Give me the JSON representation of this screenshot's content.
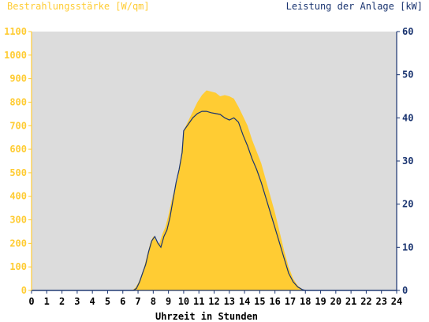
{
  "chart_data": {
    "type": "area",
    "title_left": "Bestrahlungsstärke [W/qm]",
    "title_right": "Leistung der Anlage [kW]",
    "xlabel": "Uhrzeit in Stunden",
    "xlim": [
      0,
      24
    ],
    "ylim_left": [
      0,
      1100
    ],
    "ylim_right": [
      0,
      60
    ],
    "x_ticks": [
      "0",
      "1",
      "2",
      "3",
      "4",
      "5",
      "6",
      "7",
      "8",
      "9",
      "10",
      "11",
      "12",
      "13",
      "14",
      "15",
      "16",
      "17",
      "18",
      "19",
      "20",
      "21",
      "22",
      "23",
      "24"
    ],
    "y_ticks_left": [
      "0",
      "100",
      "200",
      "300",
      "400",
      "500",
      "600",
      "700",
      "800",
      "900",
      "1000",
      "1100"
    ],
    "y_ticks_right": [
      "0",
      "10",
      "20",
      "30",
      "40",
      "50",
      "60"
    ],
    "grid": false,
    "colors": {
      "plot_background": "#dcdcdc",
      "irradiance_fill": "#ffcc33",
      "power_line": "#1a3470",
      "left_axis": "#ffcc33",
      "right_axis": "#1a3470"
    },
    "series": [
      {
        "axis": "left",
        "style": "area",
        "x": [
          0,
          6.6,
          6.8,
          7.0,
          7.2,
          7.4,
          7.6,
          7.8,
          8.0,
          8.2,
          8.4,
          8.6,
          8.8,
          9.0,
          9.2,
          9.4,
          9.6,
          9.8,
          10.0,
          10.3,
          10.6,
          10.9,
          11.2,
          11.5,
          11.8,
          12.1,
          12.4,
          12.7,
          13.0,
          13.3,
          13.6,
          13.9,
          14.2,
          14.5,
          14.8,
          15.1,
          15.4,
          15.7,
          16.0,
          16.3,
          16.6,
          16.9,
          17.2,
          17.5,
          17.8,
          18.0,
          24
        ],
        "values": [
          0,
          0,
          10,
          30,
          60,
          100,
          150,
          200,
          230,
          210,
          200,
          240,
          270,
          320,
          380,
          430,
          470,
          560,
          680,
          720,
          760,
          800,
          830,
          850,
          845,
          840,
          825,
          830,
          825,
          815,
          780,
          740,
          700,
          640,
          590,
          540,
          470,
          400,
          330,
          250,
          170,
          100,
          50,
          20,
          5,
          0,
          0
        ]
      },
      {
        "axis": "right",
        "style": "line",
        "x": [
          0,
          6.7,
          6.9,
          7.1,
          7.3,
          7.5,
          7.7,
          7.9,
          8.1,
          8.3,
          8.5,
          8.7,
          8.9,
          9.1,
          9.3,
          9.5,
          9.7,
          9.9,
          10.0,
          10.3,
          10.6,
          10.9,
          11.2,
          11.5,
          11.8,
          12.1,
          12.4,
          12.7,
          13.0,
          13.3,
          13.6,
          13.9,
          14.2,
          14.5,
          14.8,
          15.1,
          15.4,
          15.7,
          16.0,
          16.3,
          16.6,
          16.9,
          17.2,
          17.5,
          17.8,
          18.0,
          24
        ],
        "values": [
          0,
          0,
          0.5,
          2,
          4,
          6,
          9,
          11.5,
          12.5,
          11,
          10,
          12.5,
          14,
          17,
          21,
          25,
          28,
          32,
          37,
          38.5,
          40,
          41,
          41.5,
          41.5,
          41.2,
          41,
          40.8,
          40,
          39.5,
          40,
          39,
          36,
          33.5,
          30.5,
          28,
          25,
          21.5,
          18,
          14.5,
          11,
          7.5,
          4,
          2,
          0.8,
          0.2,
          0,
          0
        ]
      }
    ]
  }
}
